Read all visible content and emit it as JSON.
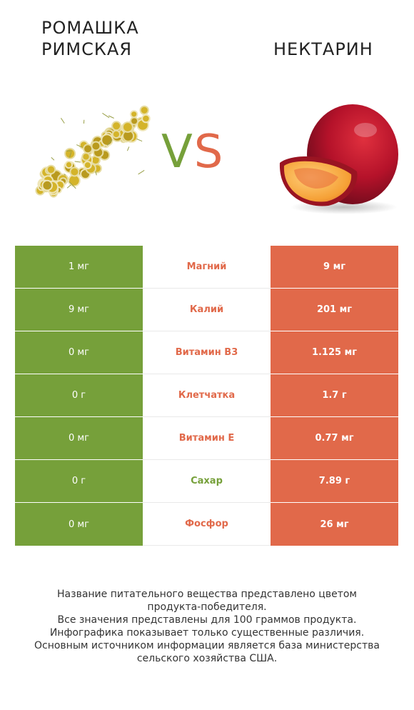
{
  "left_food": {
    "name_line1": "Ромашка",
    "name_line2": "римская",
    "color": "#76a03a"
  },
  "right_food": {
    "name": "Нектарин",
    "color": "#e1694a"
  },
  "vs": {
    "v": "V",
    "s": "S"
  },
  "rows": [
    {
      "left": "1 мг",
      "nutrient": "Магний",
      "right": "9 мг",
      "winner": "right"
    },
    {
      "left": "9 мг",
      "nutrient": "Калий",
      "right": "201 мг",
      "winner": "right"
    },
    {
      "left": "0 мг",
      "nutrient": "Витамин B3",
      "right": "1.125 мг",
      "winner": "right"
    },
    {
      "left": "0 г",
      "nutrient": "Клетчатка",
      "right": "1.7 г",
      "winner": "right"
    },
    {
      "left": "0 мг",
      "nutrient": "Витамин E",
      "right": "0.77 мг",
      "winner": "right"
    },
    {
      "left": "0 г",
      "nutrient": "Сахар",
      "right": "7.89 г",
      "winner": "left"
    },
    {
      "left": "0 мг",
      "nutrient": "Фосфор",
      "right": "26 мг",
      "winner": "right"
    }
  ],
  "footnote": {
    "line1": "Название питательного вещества представлено цветом",
    "line2": "продукта-победителя.",
    "line3": "Все значения представлены для 100 граммов продукта.",
    "line4": "Инфографика показывает только существенные различия.",
    "line5": "Основным источником информации является база министерства",
    "line6": "сельского хозяйства США."
  }
}
